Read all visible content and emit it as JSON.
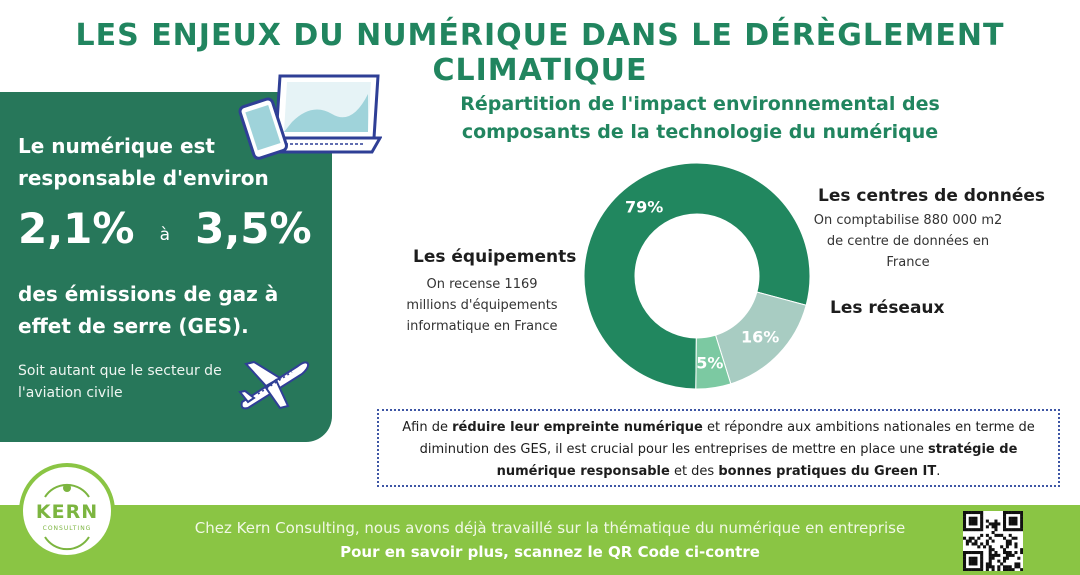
{
  "header": {
    "title": "LES ENJEUX DU NUMÉRIQUE DANS LE DÉRÈGLEMENT CLIMATIQUE"
  },
  "left_panel": {
    "line1": "Le numérique est",
    "line2": "responsable d'environ",
    "pct_low": "2,1%",
    "pct_separator": "à",
    "pct_high": "3,5%",
    "line3": "des émissions de gaz à",
    "line4": "effet de serre (GES).",
    "note_line1": "Soit autant que le secteur de",
    "note_line2": "l'aviation civile",
    "icons": [
      "laptop-phone-icon",
      "airplane-icon"
    ]
  },
  "chart_data": {
    "type": "pie",
    "title_line1": "Répartition de l'impact environnemental des",
    "title_line2": "composants de la technologie du numérique",
    "categories": [
      "Les équipements",
      "Les centres de données",
      "Les réseaux"
    ],
    "values": [
      79,
      16,
      5
    ],
    "value_labels": [
      "79%",
      "16%",
      "5%"
    ],
    "colors": [
      "#21875f",
      "#a8ccc2",
      "#7cc9a2"
    ],
    "annotations": [
      {
        "title": "Les équipements",
        "lines": [
          "On recense 1169",
          "millions d'équipements",
          "informatique en France"
        ]
      },
      {
        "title": "Les centres de données",
        "lines": [
          "On comptabilise 880 000 m2",
          "de centre de données en",
          "France"
        ]
      },
      {
        "title": "Les réseaux",
        "lines": []
      }
    ]
  },
  "cta": {
    "t1": "Afin de ",
    "b1": "réduire leur empreinte numérique",
    "t2": " et répondre aux ambitions nationales en terme de diminution des GES, il est crucial pour les entreprises de mettre en place une ",
    "b2": "stratégie de numérique responsable",
    "t3": " et des ",
    "b3": "bonnes pratiques du Green IT",
    "t4": "."
  },
  "footer": {
    "line1": "Chez Kern Consulting, nous avons déjà travaillé sur la thématique du numérique en entreprise",
    "line2": "Pour en savoir plus, scannez le QR Code ci-contre"
  },
  "logo": {
    "name": "KERN",
    "sub": "CONSULTING"
  },
  "colors": {
    "brand_green": "#21855f",
    "panel_green": "#27775a",
    "footer_green": "#8ac544",
    "dotted_border": "#3e56a5"
  }
}
